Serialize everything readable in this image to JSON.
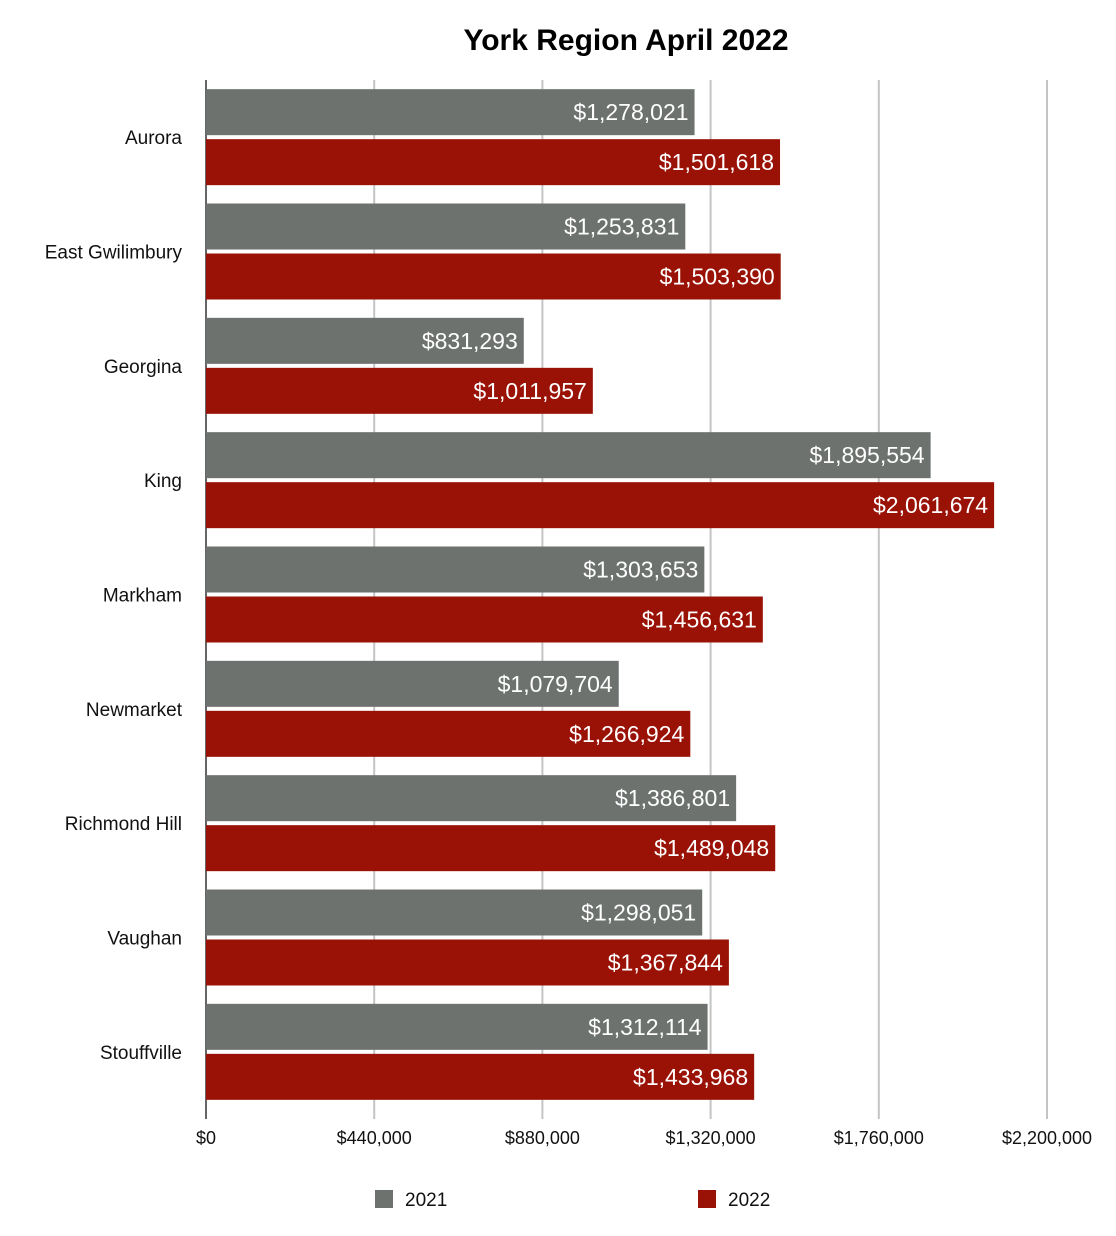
{
  "chart_data": {
    "type": "bar",
    "orientation": "horizontal",
    "title": "York Region April 2022",
    "categories": [
      "Aurora",
      "East Gwilimbury",
      "Georgina",
      "King",
      "Markham",
      "Newmarket",
      "Richmond Hill",
      "Vaughan",
      "Stouffville"
    ],
    "series": [
      {
        "name": "2021",
        "color": "#6d726f",
        "values": [
          1278021,
          1253831,
          831293,
          1895554,
          1303653,
          1079704,
          1386801,
          1298051,
          1312114
        ],
        "labels": [
          "$1,278,021",
          "$1,253,831",
          "$831,293",
          "$1,895,554",
          "$1,303,653",
          "$1,079,704",
          "$1,386,801",
          "$1,298,051",
          "$1,312,114"
        ]
      },
      {
        "name": "2022",
        "color": "#9a1206",
        "values": [
          1501618,
          1503390,
          1011957,
          2061674,
          1456631,
          1266924,
          1489048,
          1367844,
          1433968
        ],
        "labels": [
          "$1,501,618",
          "$1,503,390",
          "$1,011,957",
          "$2,061,674",
          "$1,456,631",
          "$1,266,924",
          "$1,489,048",
          "$1,367,844",
          "$1,433,968"
        ]
      }
    ],
    "xlim": [
      0,
      2200000
    ],
    "xticks": [
      0,
      440000,
      880000,
      1320000,
      1760000,
      2200000
    ],
    "xtick_labels": [
      "$0",
      "$440,000",
      "$880,000",
      "$1,320,000",
      "$1,760,000",
      "$2,200,000"
    ],
    "grid": "vertical",
    "legend_position": "bottom"
  }
}
